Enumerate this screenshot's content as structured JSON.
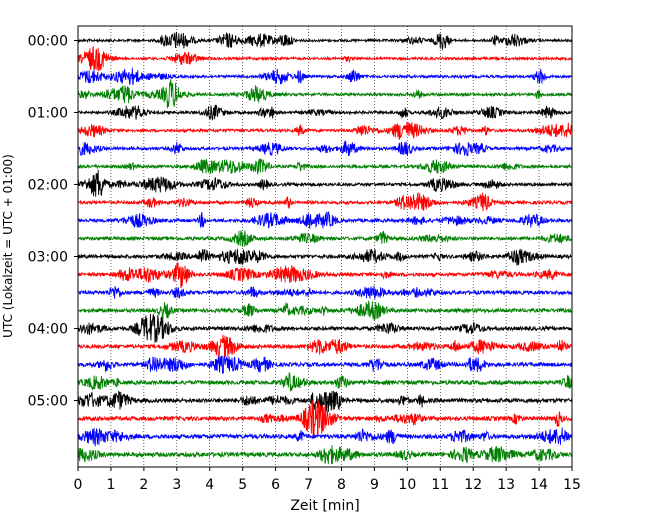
{
  "chart_data": {
    "type": "line",
    "title": "",
    "xlabel": "Zeit  [min]",
    "ylabel": "UTC (Lokalzeit = UTC + 01:00)",
    "xlim": [
      0,
      15
    ],
    "x_ticks": [
      "0",
      "1",
      "2",
      "3",
      "4",
      "5",
      "6",
      "7",
      "8",
      "9",
      "10",
      "11",
      "12",
      "13",
      "14",
      "15"
    ],
    "y_tick_labels": [
      "00:00",
      "01:00",
      "02:00",
      "03:00",
      "04:00",
      "05:00"
    ],
    "trace_interval_min": 15,
    "trace_colors": [
      "#000000",
      "#ff0000",
      "#0000ff",
      "#008000"
    ],
    "grid": "vertical-dotted",
    "traces": [
      {
        "start": "00:00",
        "color": "#000000"
      },
      {
        "start": "00:15",
        "color": "#ff0000"
      },
      {
        "start": "00:30",
        "color": "#0000ff"
      },
      {
        "start": "00:45",
        "color": "#008000"
      },
      {
        "start": "01:00",
        "color": "#000000"
      },
      {
        "start": "01:15",
        "color": "#ff0000"
      },
      {
        "start": "01:30",
        "color": "#0000ff"
      },
      {
        "start": "01:45",
        "color": "#008000"
      },
      {
        "start": "02:00",
        "color": "#000000"
      },
      {
        "start": "02:15",
        "color": "#ff0000"
      },
      {
        "start": "02:30",
        "color": "#0000ff"
      },
      {
        "start": "02:45",
        "color": "#008000"
      },
      {
        "start": "03:00",
        "color": "#000000"
      },
      {
        "start": "03:15",
        "color": "#ff0000"
      },
      {
        "start": "03:30",
        "color": "#0000ff"
      },
      {
        "start": "03:45",
        "color": "#008000"
      },
      {
        "start": "04:00",
        "color": "#000000"
      },
      {
        "start": "04:15",
        "color": "#ff0000"
      },
      {
        "start": "04:30",
        "color": "#0000ff"
      },
      {
        "start": "04:45",
        "color": "#008000"
      },
      {
        "start": "05:00",
        "color": "#000000"
      },
      {
        "start": "05:15",
        "color": "#ff0000"
      },
      {
        "start": "05:30",
        "color": "#0000ff"
      },
      {
        "start": "05:45",
        "color": "#008000"
      }
    ]
  }
}
